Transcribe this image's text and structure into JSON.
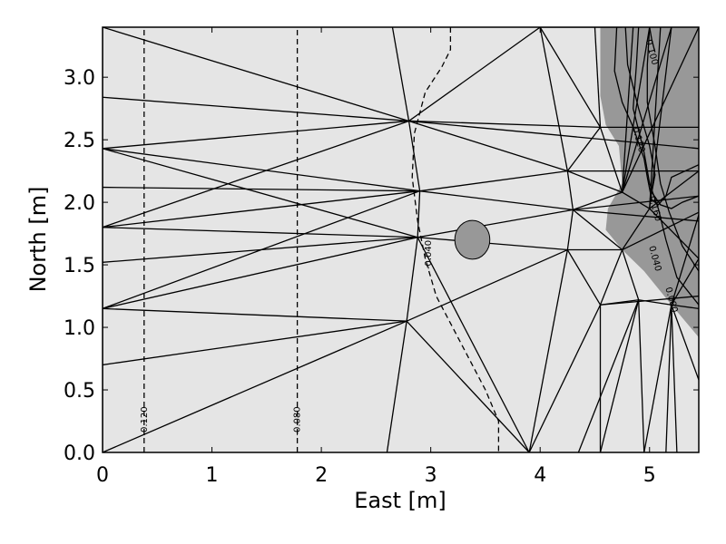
{
  "chart_data": {
    "type": "contour",
    "xlabel": "East [m]",
    "ylabel": "North [m]",
    "xlim": [
      0,
      5.45
    ],
    "ylim": [
      0,
      3.4
    ],
    "xticks": [
      0,
      1,
      2,
      3,
      4,
      5
    ],
    "yticks": [
      0.0,
      0.5,
      1.0,
      1.5,
      2.0,
      2.5,
      3.0
    ],
    "xtick_labels": [
      "0",
      "1",
      "2",
      "3",
      "4",
      "5"
    ],
    "ytick_labels": [
      "0.0",
      "0.5",
      "1.0",
      "1.5",
      "2.0",
      "2.5",
      "3.0"
    ],
    "grid": false,
    "colors": {
      "background_fill": "#e5e5e5",
      "dark_region": "#989898",
      "line": "#000000"
    },
    "mesh_edges": [
      [
        [
          0,
          3.4
        ],
        [
          2.8,
          2.65
        ]
      ],
      [
        [
          0,
          3.4
        ],
        [
          0,
          0
        ]
      ],
      [
        [
          0,
          2.84
        ],
        [
          2.8,
          2.65
        ]
      ],
      [
        [
          0,
          2.43
        ],
        [
          2.8,
          2.65
        ]
      ],
      [
        [
          0,
          2.43
        ],
        [
          2.9,
          2.09
        ]
      ],
      [
        [
          0,
          2.43
        ],
        [
          2.88,
          1.72
        ]
      ],
      [
        [
          0,
          2.12
        ],
        [
          2.9,
          2.09
        ]
      ],
      [
        [
          0,
          1.8
        ],
        [
          2.9,
          2.09
        ]
      ],
      [
        [
          0,
          1.8
        ],
        [
          2.88,
          1.72
        ]
      ],
      [
        [
          0,
          1.8
        ],
        [
          2.8,
          2.65
        ]
      ],
      [
        [
          0,
          1.52
        ],
        [
          2.88,
          1.72
        ]
      ],
      [
        [
          0,
          1.15
        ],
        [
          2.9,
          2.09
        ]
      ],
      [
        [
          0,
          1.15
        ],
        [
          2.78,
          1.05
        ]
      ],
      [
        [
          0,
          1.15
        ],
        [
          2.88,
          1.72
        ]
      ],
      [
        [
          0,
          0.7
        ],
        [
          2.78,
          1.05
        ]
      ],
      [
        [
          0,
          0
        ],
        [
          2.78,
          1.05
        ]
      ],
      [
        [
          2.6,
          0
        ],
        [
          2.78,
          1.05
        ]
      ],
      [
        [
          2.78,
          1.05
        ],
        [
          2.88,
          1.72
        ]
      ],
      [
        [
          2.78,
          1.05
        ],
        [
          3.9,
          0
        ]
      ],
      [
        [
          2.88,
          1.72
        ],
        [
          3.9,
          0
        ]
      ],
      [
        [
          2.78,
          1.05
        ],
        [
          4.25,
          1.62
        ]
      ],
      [
        [
          2.88,
          1.72
        ],
        [
          4.25,
          1.62
        ]
      ],
      [
        [
          2.88,
          1.72
        ],
        [
          2.9,
          2.09
        ]
      ],
      [
        [
          2.88,
          1.72
        ],
        [
          4.3,
          1.94
        ]
      ],
      [
        [
          2.9,
          2.09
        ],
        [
          4.3,
          1.94
        ]
      ],
      [
        [
          2.9,
          2.09
        ],
        [
          4.25,
          2.25
        ]
      ],
      [
        [
          2.9,
          2.09
        ],
        [
          2.8,
          2.65
        ]
      ],
      [
        [
          2.8,
          2.65
        ],
        [
          4.25,
          2.25
        ]
      ],
      [
        [
          2.8,
          2.65
        ],
        [
          4.55,
          2.6
        ]
      ],
      [
        [
          2.8,
          2.65
        ],
        [
          2.65,
          3.4
        ]
      ],
      [
        [
          2.8,
          2.65
        ],
        [
          4.0,
          3.4
        ]
      ],
      [
        [
          4.0,
          3.4
        ],
        [
          4.25,
          2.25
        ]
      ],
      [
        [
          4.0,
          3.4
        ],
        [
          4.55,
          2.6
        ]
      ],
      [
        [
          4.0,
          3.4
        ],
        [
          4.75,
          3.4
        ]
      ],
      [
        [
          4.25,
          2.25
        ],
        [
          4.55,
          2.6
        ]
      ],
      [
        [
          4.25,
          2.25
        ],
        [
          4.3,
          1.94
        ]
      ],
      [
        [
          4.25,
          2.25
        ],
        [
          4.75,
          2.08
        ]
      ],
      [
        [
          4.55,
          2.6
        ],
        [
          4.75,
          2.08
        ]
      ],
      [
        [
          4.3,
          1.94
        ],
        [
          4.75,
          2.08
        ]
      ],
      [
        [
          4.3,
          1.94
        ],
        [
          4.25,
          1.62
        ]
      ],
      [
        [
          4.3,
          1.94
        ],
        [
          4.75,
          1.62
        ]
      ],
      [
        [
          4.25,
          1.62
        ],
        [
          4.75,
          1.62
        ]
      ],
      [
        [
          4.25,
          1.62
        ],
        [
          4.55,
          1.18
        ]
      ],
      [
        [
          4.25,
          1.62
        ],
        [
          3.9,
          0
        ]
      ],
      [
        [
          3.9,
          0
        ],
        [
          4.55,
          1.18
        ]
      ],
      [
        [
          4.55,
          1.18
        ],
        [
          4.55,
          0
        ]
      ],
      [
        [
          4.55,
          1.18
        ],
        [
          4.75,
          1.62
        ]
      ],
      [
        [
          4.55,
          1.18
        ],
        [
          4.9,
          1.22
        ]
      ],
      [
        [
          4.75,
          1.62
        ],
        [
          4.9,
          1.22
        ]
      ],
      [
        [
          4.9,
          1.22
        ],
        [
          4.95,
          0
        ]
      ],
      [
        [
          4.9,
          1.22
        ],
        [
          4.55,
          0
        ]
      ],
      [
        [
          4.9,
          1.22
        ],
        [
          5.2,
          1.18
        ]
      ],
      [
        [
          4.9,
          1.22
        ],
        [
          4.35,
          0
        ]
      ],
      [
        [
          5.2,
          1.18
        ],
        [
          4.95,
          0
        ]
      ],
      [
        [
          5.2,
          1.18
        ],
        [
          5.25,
          0
        ]
      ],
      [
        [
          5.2,
          1.18
        ],
        [
          5.15,
          0
        ]
      ],
      [
        [
          5.2,
          1.18
        ],
        [
          5.45,
          0.58
        ]
      ],
      [
        [
          5.2,
          1.18
        ],
        [
          5.45,
          1.15
        ]
      ],
      [
        [
          4.55,
          1.18
        ],
        [
          5.45,
          1.25
        ]
      ],
      [
        [
          4.75,
          1.62
        ],
        [
          5.0,
          1.95
        ]
      ],
      [
        [
          4.75,
          2.08
        ],
        [
          5.0,
          1.95
        ]
      ],
      [
        [
          4.3,
          1.94
        ],
        [
          5.45,
          1.85
        ]
      ],
      [
        [
          4.3,
          1.94
        ],
        [
          5.45,
          2.05
        ]
      ],
      [
        [
          4.25,
          2.25
        ],
        [
          5.45,
          2.25
        ]
      ],
      [
        [
          4.55,
          2.6
        ],
        [
          5.45,
          2.6
        ]
      ],
      [
        [
          2.8,
          2.65
        ],
        [
          5.45,
          2.43
        ]
      ],
      [
        [
          4.55,
          2.6
        ],
        [
          4.5,
          3.4
        ]
      ],
      [
        [
          4.75,
          2.08
        ],
        [
          4.85,
          3.4
        ]
      ],
      [
        [
          4.75,
          2.08
        ],
        [
          5.0,
          3.4
        ]
      ],
      [
        [
          4.75,
          2.08
        ],
        [
          5.2,
          3.4
        ]
      ],
      [
        [
          4.75,
          2.08
        ],
        [
          5.45,
          3.4
        ]
      ],
      [
        [
          5.0,
          1.95
        ],
        [
          5.45,
          2.25
        ]
      ],
      [
        [
          5.0,
          1.95
        ],
        [
          5.45,
          1.55
        ]
      ],
      [
        [
          4.75,
          1.62
        ],
        [
          5.45,
          1.92
        ]
      ],
      [
        [
          5.0,
          1.95
        ],
        [
          5.2,
          3.4
        ]
      ],
      [
        [
          5.0,
          1.95
        ],
        [
          5.1,
          3.4
        ]
      ],
      [
        [
          5.45,
          1.55
        ],
        [
          5.2,
          1.18
        ]
      ],
      [
        [
          5.45,
          1.9
        ],
        [
          5.2,
          1.18
        ]
      ]
    ],
    "dark_region": [
      [
        4.55,
        3.4
      ],
      [
        5.45,
        3.4
      ],
      [
        5.45,
        0.92
      ],
      [
        5.2,
        1.18
      ],
      [
        4.95,
        1.45
      ],
      [
        4.75,
        1.62
      ],
      [
        4.6,
        1.78
      ],
      [
        4.62,
        1.95
      ],
      [
        4.75,
        2.15
      ],
      [
        4.72,
        2.45
      ],
      [
        4.6,
        2.62
      ],
      [
        4.55,
        2.85
      ],
      [
        4.55,
        3.1
      ]
    ],
    "ellipse": {
      "center": [
        3.38,
        1.7
      ],
      "rx": 0.16,
      "ry": 0.155
    },
    "contours": [
      {
        "level": "-0.120",
        "style": "dashed",
        "points": [
          [
            0.38,
            0
          ],
          [
            0.38,
            3.4
          ]
        ],
        "label_at": [
          0.38,
          0.25
        ]
      },
      {
        "level": "-0.080",
        "style": "dashed",
        "points": [
          [
            1.78,
            0
          ],
          [
            1.78,
            3.4
          ]
        ],
        "label_at": [
          1.78,
          0.25
        ]
      },
      {
        "level": "-0.040",
        "style": "dashed",
        "points": [
          [
            3.18,
            3.4
          ],
          [
            3.18,
            3.22
          ],
          [
            3.1,
            3.08
          ],
          [
            2.95,
            2.88
          ],
          [
            2.85,
            2.55
          ],
          [
            2.83,
            2.2
          ],
          [
            2.88,
            1.85
          ],
          [
            2.95,
            1.55
          ],
          [
            3.05,
            1.25
          ],
          [
            3.2,
            1.0
          ],
          [
            3.35,
            0.75
          ],
          [
            3.5,
            0.5
          ],
          [
            3.62,
            0.25
          ],
          [
            3.62,
            0
          ]
        ],
        "label_at": [
          2.98,
          1.58
        ]
      },
      {
        "level": "0.040",
        "style": "solid",
        "points": [
          [
            4.9,
            3.4
          ],
          [
            4.88,
            3.1
          ],
          [
            4.85,
            2.75
          ],
          [
            4.95,
            2.4
          ],
          [
            5.0,
            2.15
          ],
          [
            5.08,
            1.95
          ],
          [
            5.15,
            1.7
          ],
          [
            5.25,
            1.4
          ],
          [
            5.45,
            1.18
          ]
        ],
        "label_at": [
          5.05,
          1.55
        ]
      },
      {
        "level": "0.080",
        "style": "solid",
        "points": [
          [
            5.0,
            3.4
          ],
          [
            4.98,
            3.1
          ],
          [
            4.98,
            2.8
          ],
          [
            5.05,
            2.45
          ],
          [
            5.1,
            2.15
          ],
          [
            5.18,
            1.92
          ],
          [
            5.3,
            1.65
          ],
          [
            5.45,
            1.45
          ]
        ],
        "label_at": [
          5.2,
          1.22
        ]
      },
      {
        "level": "0.120",
        "style": "solid",
        "points": [
          [
            4.7,
            3.4
          ],
          [
            4.68,
            3.05
          ],
          [
            4.75,
            2.8
          ],
          [
            4.85,
            2.6
          ],
          [
            4.95,
            2.35
          ],
          [
            4.98,
            2.2
          ],
          [
            5.02,
            2.02
          ],
          [
            5.08,
            1.98
          ],
          [
            5.15,
            2.05
          ],
          [
            5.2,
            2.2
          ],
          [
            5.45,
            2.3
          ]
        ],
        "label_at": [
          4.9,
          2.5
        ]
      },
      {
        "level": "0.160",
        "style": "solid",
        "points": [
          [
            4.78,
            3.4
          ],
          [
            4.8,
            3.1
          ],
          [
            4.9,
            2.75
          ],
          [
            5.0,
            2.45
          ],
          [
            5.05,
            2.22
          ],
          [
            5.02,
            2.08
          ],
          [
            5.1,
            1.98
          ],
          [
            5.2,
            1.95
          ],
          [
            5.3,
            2.0
          ],
          [
            5.45,
            2.05
          ]
        ],
        "label_at": [
          5.05,
          1.95
        ]
      },
      {
        "level": "0.100",
        "style": "solid",
        "points": [
          [
            5.0,
            3.4
          ],
          [
            5.02,
            3.3
          ],
          [
            5.05,
            3.2
          ]
        ],
        "label_at": [
          5.02,
          3.2
        ]
      }
    ],
    "contour_label_texts": [
      "-0.120",
      "-0.080",
      "-0.040",
      "0.040",
      "0.080",
      "0.120",
      "0.160",
      "0.100"
    ]
  }
}
